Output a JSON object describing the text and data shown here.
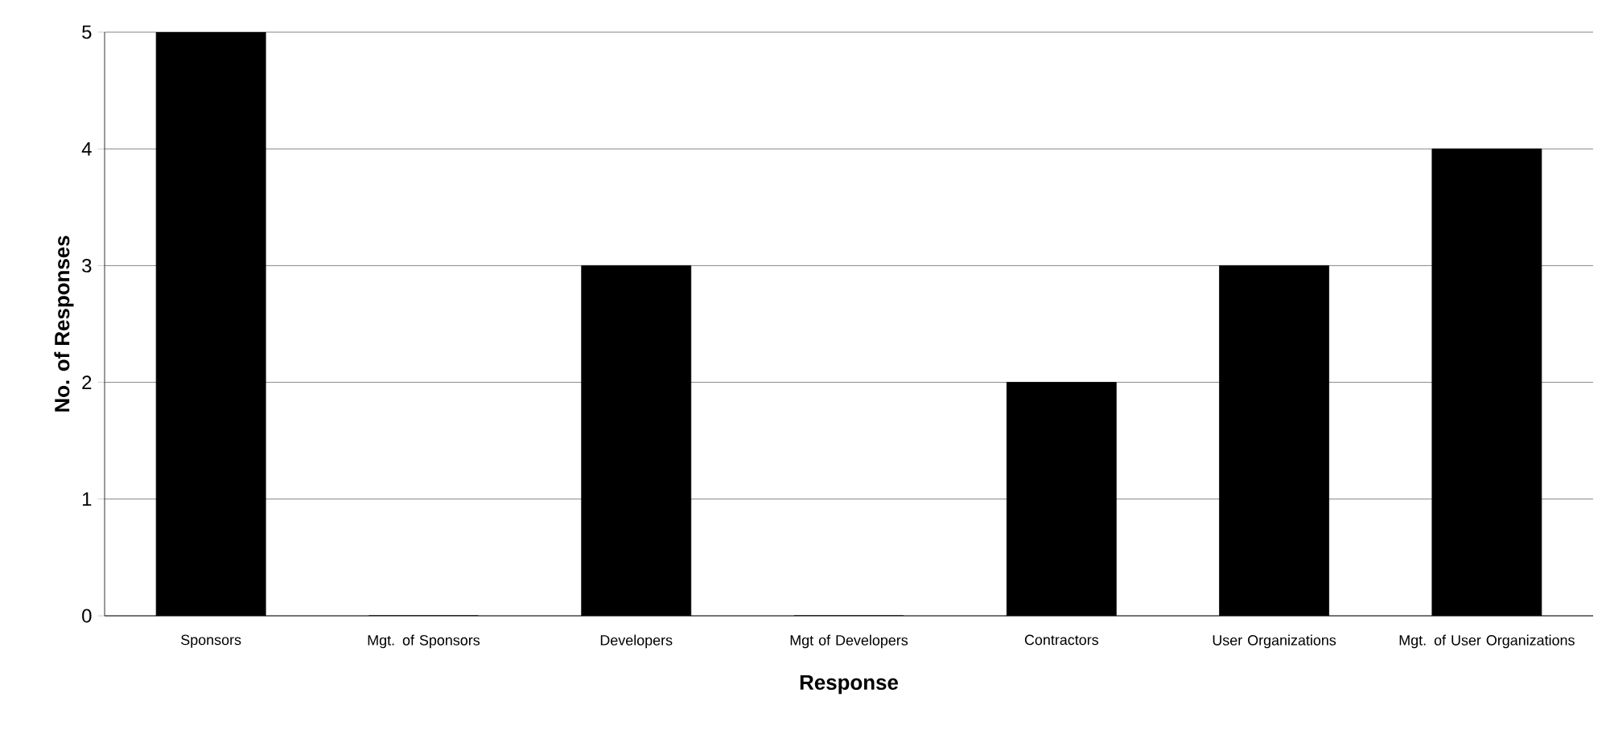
{
  "chart_data": {
    "type": "bar",
    "xlabel": "Response",
    "ylabel": "No. of Responses",
    "categories": [
      "Sponsors",
      "Mgt. of Sponsors",
      "Developers",
      "Mgt of Developers",
      "Contractors",
      "User Organizations",
      "Mgt. of User Organizations"
    ],
    "values": [
      5,
      0,
      3,
      0,
      2,
      3,
      4
    ],
    "color": "#000000",
    "ylim": [
      0,
      5
    ],
    "yticks": [
      0,
      1,
      2,
      3,
      4,
      5
    ],
    "grid": "y"
  }
}
